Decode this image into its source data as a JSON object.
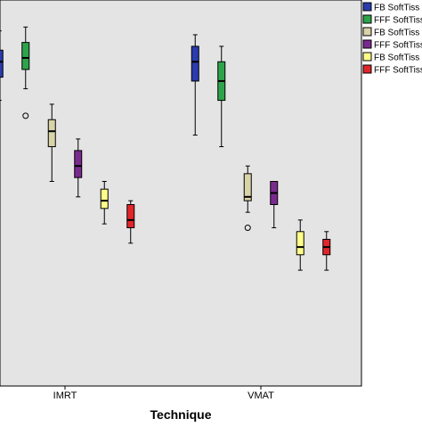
{
  "chart_data": {
    "type": "box",
    "title": "",
    "xlabel": "Technique",
    "ylabel": "",
    "ylim": [
      0,
      100
    ],
    "categories": [
      "IMRT",
      "VMAT"
    ],
    "series": [
      {
        "name": "FB SoftTiss",
        "color": "#2a3cae",
        "boxes": [
          {
            "category": "IMRT",
            "min": 74,
            "q1": 80,
            "median": 84,
            "q3": 87,
            "max": 92,
            "outliers": []
          },
          {
            "category": "VMAT",
            "min": 65,
            "q1": 79,
            "median": 84,
            "q3": 88,
            "max": 91,
            "outliers": []
          }
        ]
      },
      {
        "name": "FFF SoftTiss",
        "color": "#2ea44a",
        "boxes": [
          {
            "category": "IMRT",
            "min": 77,
            "q1": 82,
            "median": 85,
            "q3": 89,
            "max": 93,
            "outliers": [
              70
            ]
          },
          {
            "category": "VMAT",
            "min": 62,
            "q1": 74,
            "median": 79,
            "q3": 84,
            "max": 88,
            "outliers": []
          }
        ]
      },
      {
        "name": "FB SoftTiss",
        "color": "#d8d3a8",
        "boxes": [
          {
            "category": "IMRT",
            "min": 53,
            "q1": 62,
            "median": 66,
            "q3": 69,
            "max": 73,
            "outliers": []
          },
          {
            "category": "VMAT",
            "min": 45,
            "q1": 48,
            "median": 49,
            "q3": 55,
            "max": 57,
            "outliers": [
              41
            ]
          }
        ]
      },
      {
        "name": "FFF SoftTiss",
        "color": "#7a2a8e",
        "boxes": [
          {
            "category": "IMRT",
            "min": 49,
            "q1": 54,
            "median": 57,
            "q3": 61,
            "max": 64,
            "outliers": []
          },
          {
            "category": "VMAT",
            "min": 41,
            "q1": 47,
            "median": 50,
            "q3": 53,
            "max": 53,
            "outliers": []
          }
        ]
      },
      {
        "name": "FB SoftTiss",
        "color": "#ffff88",
        "boxes": [
          {
            "category": "IMRT",
            "min": 42,
            "q1": 46,
            "median": 48,
            "q3": 51,
            "max": 53,
            "outliers": []
          },
          {
            "category": "VMAT",
            "min": 30,
            "q1": 34,
            "median": 36,
            "q3": 40,
            "max": 43,
            "outliers": []
          }
        ]
      },
      {
        "name": "FFF SoftTiss",
        "color": "#e0262b",
        "boxes": [
          {
            "category": "IMRT",
            "min": 37,
            "q1": 41,
            "median": 43,
            "q3": 47,
            "max": 48,
            "outliers": []
          },
          {
            "category": "VMAT",
            "min": 30,
            "q1": 34,
            "median": 36,
            "q3": 38,
            "max": 40,
            "outliers": []
          }
        ]
      }
    ],
    "legend_position": "top-right",
    "grid": false
  }
}
